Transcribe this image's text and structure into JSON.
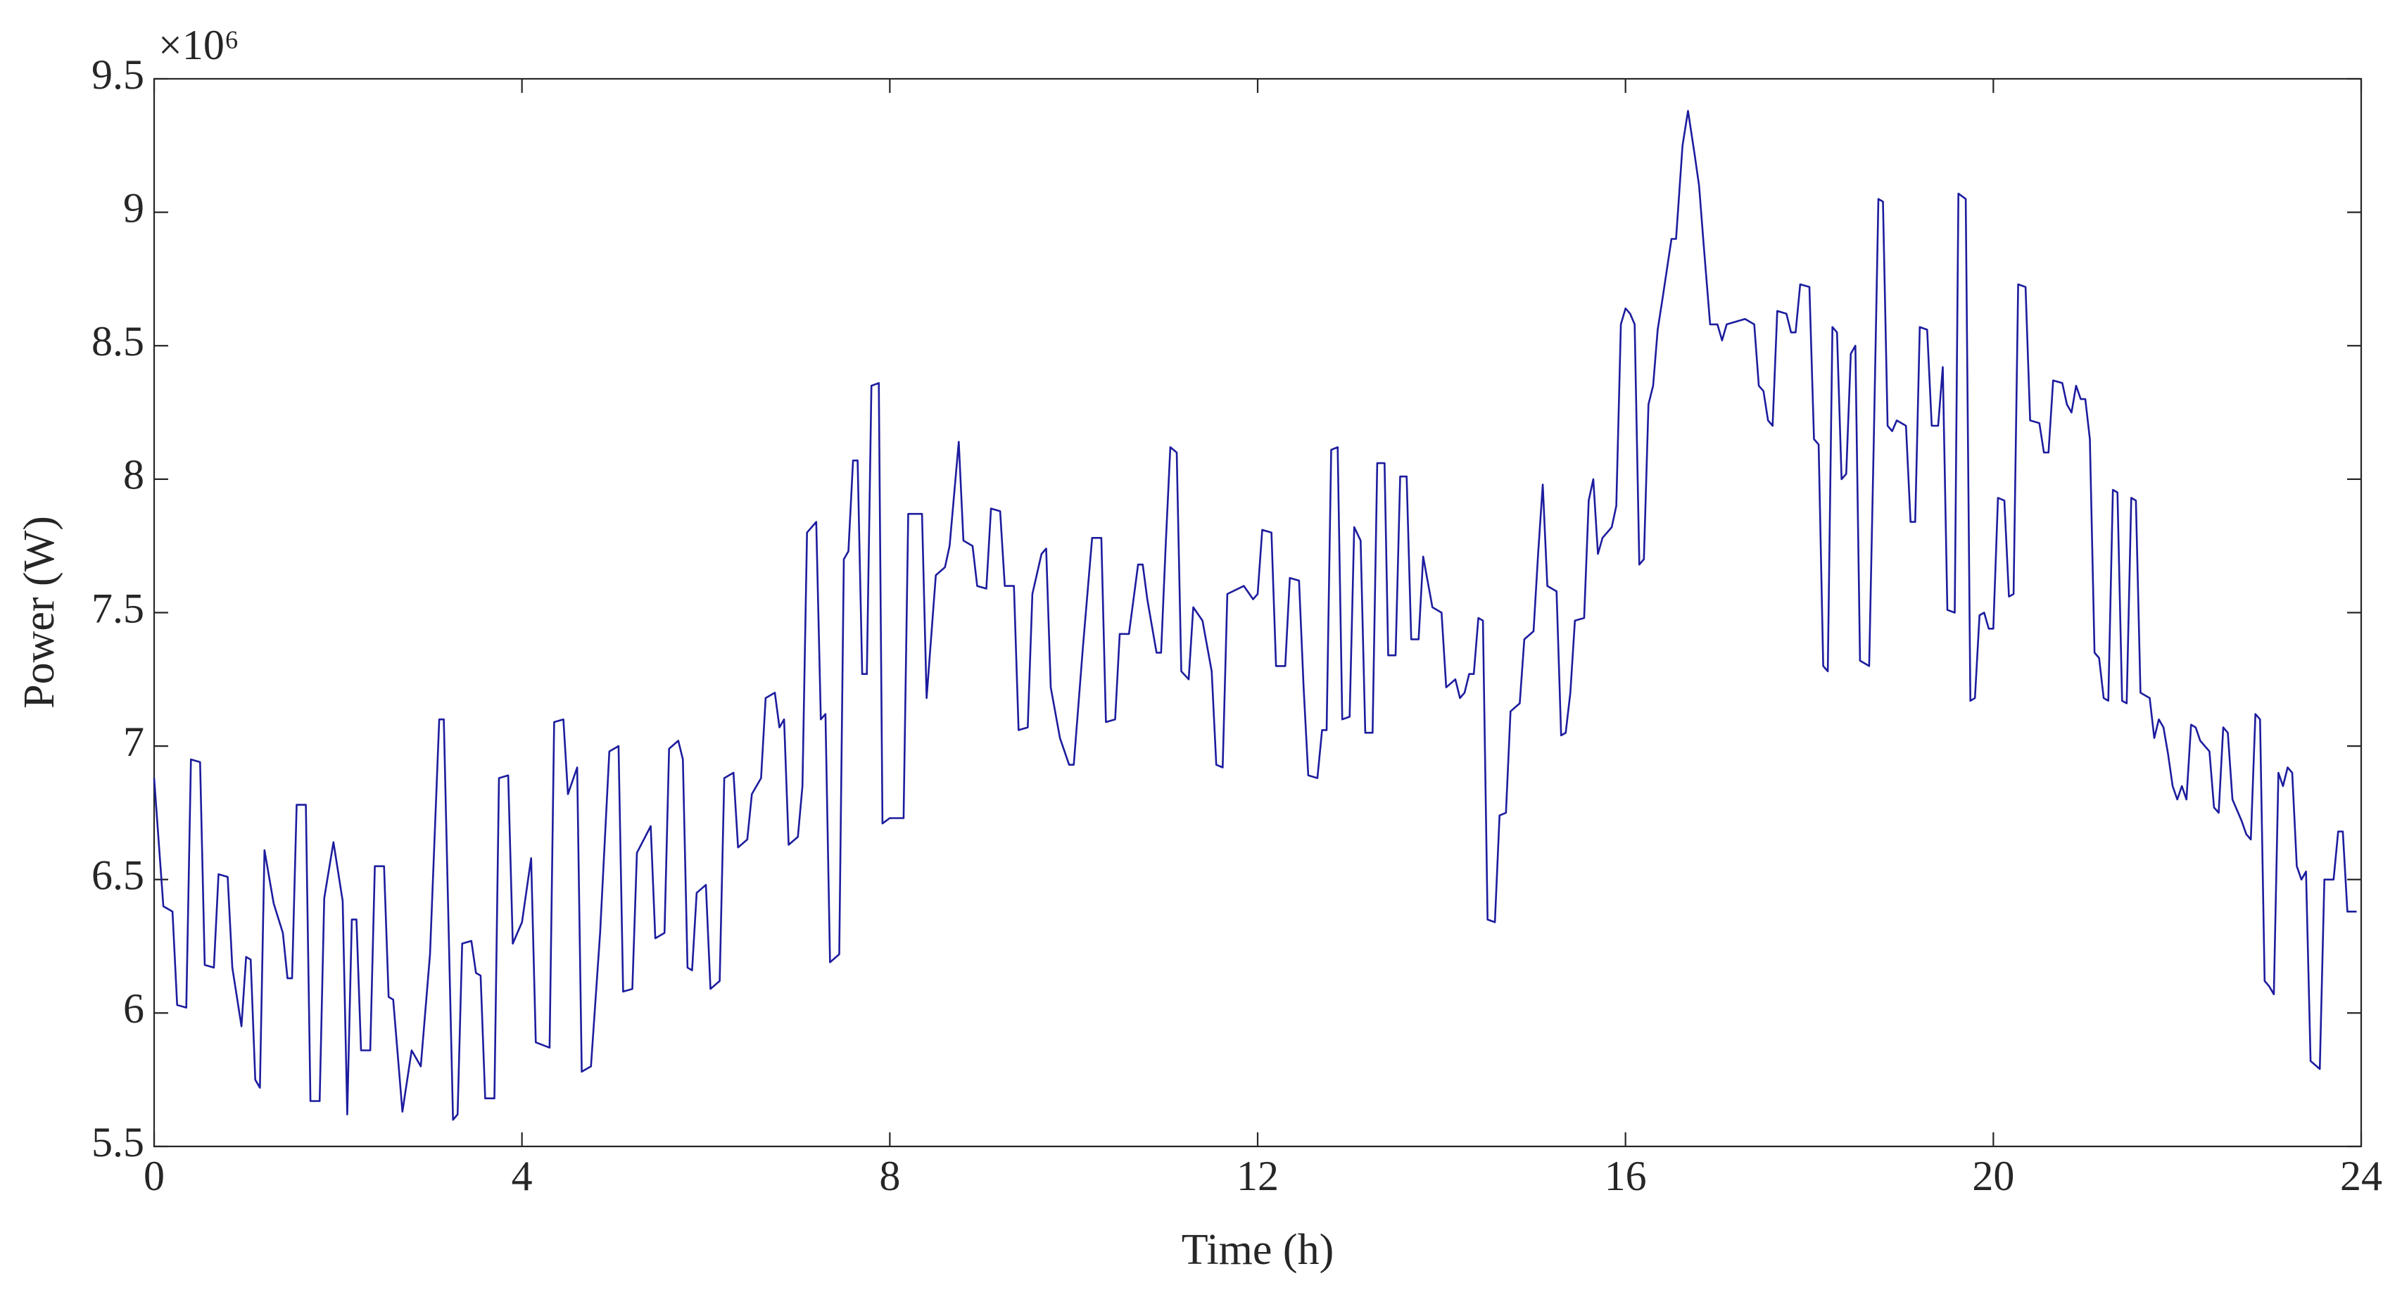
{
  "chart_data": {
    "type": "line",
    "x_label": "Time (h)",
    "y_label": "Power (W)",
    "y_multiplier": "×10⁶",
    "color": "#1c1c9e",
    "xlim": [
      0,
      24
    ],
    "xticks": [
      0,
      4,
      8,
      12,
      16,
      20,
      24
    ],
    "ylim": [
      5.5,
      9.5
    ],
    "yticks": [
      5.5,
      6,
      6.5,
      7,
      7.5,
      8,
      8.5,
      9,
      9.5
    ],
    "x": [
      0,
      0.1,
      0.2,
      0.25,
      0.35,
      0.4,
      0.5,
      0.55,
      0.65,
      0.7,
      0.8,
      0.85,
      0.95,
      1.0,
      1.05,
      1.1,
      1.15,
      1.2,
      1.3,
      1.4,
      1.45,
      1.5,
      1.55,
      1.65,
      1.7,
      1.8,
      1.85,
      1.95,
      2.05,
      2.1,
      2.15,
      2.2,
      2.25,
      2.35,
      2.4,
      2.5,
      2.55,
      2.6,
      2.7,
      2.8,
      2.9,
      3.0,
      3.1,
      3.15,
      3.25,
      3.3,
      3.35,
      3.45,
      3.5,
      3.55,
      3.6,
      3.7,
      3.75,
      3.85,
      3.9,
      4.0,
      4.1,
      4.15,
      4.3,
      4.35,
      4.45,
      4.5,
      4.6,
      4.65,
      4.75,
      4.85,
      4.95,
      5.05,
      5.1,
      5.2,
      5.25,
      5.4,
      5.45,
      5.55,
      5.6,
      5.7,
      5.75,
      5.8,
      5.85,
      5.9,
      6.0,
      6.05,
      6.15,
      6.2,
      6.3,
      6.35,
      6.45,
      6.5,
      6.6,
      6.65,
      6.75,
      6.8,
      6.85,
      6.9,
      7.0,
      7.05,
      7.1,
      7.2,
      7.25,
      7.3,
      7.35,
      7.45,
      7.5,
      7.55,
      7.6,
      7.65,
      7.7,
      7.75,
      7.8,
      7.88,
      7.92,
      8.0,
      8.15,
      8.2,
      8.35,
      8.4,
      8.5,
      8.6,
      8.65,
      8.75,
      8.8,
      8.9,
      8.95,
      9.05,
      9.1,
      9.2,
      9.25,
      9.35,
      9.4,
      9.5,
      9.55,
      9.65,
      9.7,
      9.75,
      9.85,
      9.9,
      9.95,
      10.0,
      10.1,
      10.2,
      10.3,
      10.35,
      10.45,
      10.5,
      10.6,
      10.7,
      10.75,
      10.8,
      10.9,
      10.95,
      11.0,
      11.05,
      11.12,
      11.17,
      11.25,
      11.3,
      11.4,
      11.5,
      11.55,
      11.62,
      11.67,
      11.85,
      11.95,
      12.0,
      12.05,
      12.15,
      12.2,
      12.3,
      12.35,
      12.45,
      12.5,
      12.55,
      12.65,
      12.7,
      12.75,
      12.8,
      12.87,
      12.92,
      13.0,
      13.05,
      13.12,
      13.17,
      13.25,
      13.3,
      13.38,
      13.42,
      13.5,
      13.55,
      13.62,
      13.67,
      13.75,
      13.8,
      13.9,
      14.0,
      14.05,
      14.15,
      14.2,
      14.25,
      14.3,
      14.35,
      14.4,
      14.45,
      14.5,
      14.58,
      14.63,
      14.7,
      14.75,
      14.85,
      14.9,
      15.0,
      15.05,
      15.1,
      15.15,
      15.25,
      15.3,
      15.35,
      15.4,
      15.45,
      15.55,
      15.6,
      15.65,
      15.7,
      15.75,
      15.85,
      15.9,
      15.95,
      16.0,
      16.05,
      16.1,
      16.15,
      16.2,
      16.25,
      16.3,
      16.35,
      16.4,
      16.5,
      16.55,
      16.62,
      16.68,
      16.75,
      16.8,
      16.85,
      16.92,
      17.0,
      17.05,
      17.1,
      17.3,
      17.4,
      17.45,
      17.5,
      17.55,
      17.6,
      17.65,
      17.75,
      17.8,
      17.85,
      17.9,
      18.0,
      18.05,
      18.1,
      18.15,
      18.2,
      18.25,
      18.3,
      18.35,
      18.4,
      18.45,
      18.5,
      18.55,
      18.65,
      18.7,
      18.75,
      18.8,
      18.85,
      18.9,
      18.95,
      19.05,
      19.1,
      19.15,
      19.2,
      19.28,
      19.33,
      19.4,
      19.45,
      19.5,
      19.58,
      19.62,
      19.7,
      19.75,
      19.8,
      19.85,
      19.9,
      19.95,
      20.0,
      20.05,
      20.12,
      20.17,
      20.22,
      20.27,
      20.35,
      20.4,
      20.5,
      20.55,
      20.6,
      20.65,
      20.75,
      20.8,
      20.85,
      20.9,
      20.95,
      21.0,
      21.05,
      21.1,
      21.15,
      21.2,
      21.25,
      21.3,
      21.35,
      21.4,
      21.45,
      21.5,
      21.55,
      21.6,
      21.7,
      21.75,
      21.8,
      21.85,
      21.9,
      21.95,
      22.0,
      22.05,
      22.1,
      22.15,
      22.2,
      22.25,
      22.35,
      22.4,
      22.45,
      22.5,
      22.55,
      22.6,
      22.7,
      22.75,
      22.8,
      22.85,
      22.9,
      22.95,
      23.0,
      23.05,
      23.1,
      23.15,
      23.2,
      23.25,
      23.3,
      23.35,
      23.4,
      23.45,
      23.55,
      23.6,
      23.7,
      23.75,
      23.8,
      23.85,
      23.95
    ],
    "values": [
      6.88,
      6.4,
      6.38,
      6.03,
      6.02,
      6.95,
      6.94,
      6.18,
      6.17,
      6.52,
      6.51,
      6.17,
      5.95,
      6.21,
      6.2,
      5.75,
      5.72,
      6.61,
      6.41,
      6.3,
      6.13,
      6.13,
      6.78,
      6.78,
      5.67,
      5.67,
      6.43,
      6.64,
      6.42,
      5.62,
      6.35,
      6.35,
      5.86,
      5.86,
      6.55,
      6.55,
      6.06,
      6.05,
      5.63,
      5.86,
      5.8,
      6.22,
      7.1,
      7.1,
      5.6,
      5.62,
      6.26,
      6.27,
      6.15,
      6.14,
      5.68,
      5.68,
      6.88,
      6.89,
      6.26,
      6.34,
      6.58,
      5.89,
      5.87,
      7.09,
      7.1,
      6.82,
      6.92,
      5.78,
      5.8,
      6.3,
      6.98,
      7.0,
      6.08,
      6.09,
      6.6,
      6.7,
      6.28,
      6.3,
      6.99,
      7.02,
      6.95,
      6.17,
      6.16,
      6.45,
      6.48,
      6.09,
      6.12,
      6.88,
      6.9,
      6.62,
      6.65,
      6.82,
      6.88,
      7.18,
      7.2,
      7.07,
      7.1,
      6.63,
      6.66,
      6.85,
      7.8,
      7.84,
      7.1,
      7.12,
      6.19,
      6.22,
      7.7,
      7.73,
      8.07,
      8.07,
      7.27,
      7.27,
      8.35,
      8.36,
      6.71,
      6.73,
      6.73,
      7.87,
      7.87,
      7.18,
      7.64,
      7.67,
      7.75,
      8.14,
      7.77,
      7.75,
      7.6,
      7.59,
      7.89,
      7.88,
      7.6,
      7.6,
      7.06,
      7.07,
      7.57,
      7.72,
      7.74,
      7.22,
      7.03,
      6.98,
      6.93,
      6.93,
      7.37,
      7.78,
      7.78,
      7.09,
      7.1,
      7.42,
      7.42,
      7.68,
      7.68,
      7.55,
      7.35,
      7.35,
      7.75,
      8.12,
      8.1,
      7.28,
      7.25,
      7.52,
      7.47,
      7.28,
      6.93,
      6.92,
      7.57,
      7.6,
      7.55,
      7.57,
      7.81,
      7.8,
      7.3,
      7.3,
      7.63,
      7.62,
      7.22,
      6.89,
      6.88,
      7.06,
      7.06,
      8.11,
      8.12,
      7.1,
      7.11,
      7.82,
      7.77,
      7.05,
      7.05,
      8.06,
      8.06,
      7.34,
      7.34,
      8.01,
      8.01,
      7.4,
      7.4,
      7.71,
      7.52,
      7.5,
      7.22,
      7.25,
      7.18,
      7.2,
      7.27,
      7.27,
      7.48,
      7.47,
      6.35,
      6.34,
      6.74,
      6.75,
      7.13,
      7.16,
      7.4,
      7.43,
      7.72,
      7.98,
      7.6,
      7.58,
      7.04,
      7.05,
      7.2,
      7.47,
      7.48,
      7.92,
      8.0,
      7.72,
      7.78,
      7.82,
      7.9,
      8.58,
      8.64,
      8.62,
      8.58,
      7.68,
      7.7,
      8.28,
      8.35,
      8.56,
      8.67,
      8.9,
      8.9,
      9.25,
      9.38,
      9.22,
      9.1,
      8.88,
      8.58,
      8.58,
      8.52,
      8.58,
      8.6,
      8.58,
      8.35,
      8.33,
      8.22,
      8.2,
      8.63,
      8.62,
      8.55,
      8.55,
      8.73,
      8.72,
      8.15,
      8.13,
      7.3,
      7.28,
      8.57,
      8.55,
      8.0,
      8.02,
      8.47,
      8.5,
      7.32,
      7.3,
      8.15,
      9.05,
      9.04,
      8.2,
      8.18,
      8.22,
      8.2,
      7.84,
      7.84,
      8.57,
      8.56,
      8.2,
      8.2,
      8.42,
      7.51,
      7.5,
      9.07,
      9.05,
      7.17,
      7.18,
      7.49,
      7.5,
      7.44,
      7.44,
      7.93,
      7.92,
      7.56,
      7.57,
      8.73,
      8.72,
      8.22,
      8.21,
      8.1,
      8.1,
      8.37,
      8.36,
      8.28,
      8.25,
      8.35,
      8.3,
      8.3,
      8.15,
      7.35,
      7.33,
      7.18,
      7.17,
      7.96,
      7.95,
      7.17,
      7.16,
      7.93,
      7.92,
      7.2,
      7.18,
      7.03,
      7.1,
      7.07,
      6.97,
      6.85,
      6.8,
      6.85,
      6.8,
      7.08,
      7.07,
      7.02,
      6.98,
      6.77,
      6.75,
      7.07,
      7.05,
      6.8,
      6.72,
      6.67,
      6.65,
      7.12,
      7.1,
      6.12,
      6.1,
      6.07,
      6.9,
      6.85,
      6.92,
      6.9,
      6.55,
      6.5,
      6.53,
      5.82,
      5.79,
      6.5,
      6.5,
      6.68,
      6.68,
      6.38,
      6.38
    ]
  }
}
